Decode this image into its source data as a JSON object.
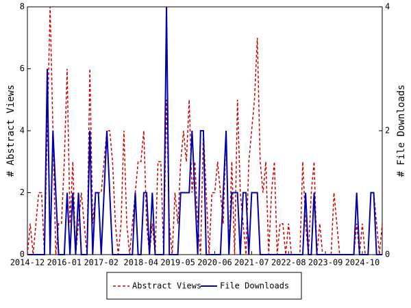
{
  "chart_data": {
    "type": "line",
    "categories": [
      "2014-12",
      null,
      null,
      null,
      null,
      null,
      null,
      null,
      null,
      null,
      null,
      null,
      null,
      "2016-01",
      null,
      null,
      null,
      null,
      null,
      null,
      null,
      null,
      null,
      null,
      null,
      null,
      "2017-02",
      null,
      null,
      null,
      null,
      null,
      null,
      null,
      null,
      null,
      null,
      null,
      null,
      null,
      "2018-04",
      null,
      null,
      null,
      null,
      null,
      null,
      null,
      null,
      null,
      null,
      null,
      null,
      "2019-05",
      null,
      null,
      null,
      null,
      null,
      null,
      null,
      null,
      null,
      null,
      null,
      null,
      "2020-06",
      null,
      null,
      null,
      null,
      null,
      null,
      null,
      null,
      null,
      null,
      null,
      null,
      "2021-07",
      null,
      null,
      null,
      null,
      null,
      null,
      null,
      null,
      null,
      null,
      null,
      null,
      "2022-08",
      null,
      null,
      null,
      null,
      null,
      null,
      null,
      null,
      null,
      null,
      null,
      null,
      "2023-09",
      null,
      null,
      null,
      null,
      null,
      null,
      null,
      null,
      null,
      null,
      null,
      null,
      "2024-10",
      null,
      null,
      null,
      null,
      null,
      null,
      null
    ],
    "ylabel": "# Abstract Views",
    "y2label": "# File Downloads",
    "ylim": [
      0,
      8
    ],
    "yticks": [
      0,
      2,
      4,
      6,
      8
    ],
    "y2lim": [
      0,
      4
    ],
    "y2ticks": [
      0,
      2,
      4
    ],
    "legend": "bottom",
    "series": [
      {
        "name": "Abstract Views",
        "color": "#cc0000",
        "dash": true,
        "values": [
          0,
          1,
          0,
          1,
          2,
          2,
          0,
          4,
          8,
          4,
          0,
          1,
          1,
          3,
          6,
          1,
          3,
          0,
          1,
          2,
          1,
          0,
          6,
          1,
          2,
          2,
          2,
          3,
          4,
          4,
          3,
          1,
          0,
          1,
          4,
          1,
          0,
          1,
          2,
          3,
          3,
          4,
          1,
          0,
          1,
          0,
          3,
          3,
          0,
          5,
          1,
          0,
          2,
          1,
          3,
          4,
          3,
          5,
          2,
          3,
          1,
          0,
          4,
          2,
          0,
          2,
          2,
          3,
          2,
          1,
          4,
          0,
          3,
          0,
          5,
          2,
          1,
          0,
          3,
          4,
          5,
          7,
          3,
          2,
          3,
          0,
          2,
          3,
          0,
          1,
          1,
          0,
          1,
          0,
          0,
          0,
          0,
          3,
          1,
          0,
          2,
          3,
          0,
          1,
          0,
          0,
          0,
          0,
          2,
          1,
          0,
          0,
          0,
          0,
          0,
          0,
          1,
          0,
          1,
          0,
          0,
          2,
          2,
          1,
          0,
          1
        ]
      },
      {
        "name": "File Downloads",
        "color": "#0000aa",
        "dash": false,
        "axis": "y2",
        "values": [
          0,
          0,
          0,
          0,
          0,
          0,
          0,
          3,
          0,
          2,
          1,
          0,
          0,
          0,
          1,
          0,
          1,
          0,
          1,
          0,
          0,
          0,
          2,
          0,
          1,
          1,
          0,
          1,
          2,
          1,
          0,
          0,
          0,
          0,
          0,
          0,
          0,
          0,
          1,
          0,
          0,
          1,
          1,
          0,
          1,
          0,
          0,
          0,
          0,
          4,
          0,
          0,
          0,
          0,
          1,
          1,
          1,
          1,
          2,
          1,
          0,
          2,
          2,
          0,
          0,
          0,
          0,
          0,
          0,
          1,
          2,
          0,
          1,
          1,
          1,
          0,
          1,
          1,
          0,
          1,
          1,
          1,
          0,
          0,
          0,
          0,
          0,
          0,
          0,
          0,
          0,
          0,
          0,
          0,
          0,
          0,
          0,
          0,
          1,
          0,
          0,
          1,
          0,
          0,
          0,
          0,
          0,
          0,
          0,
          0,
          0,
          0,
          0,
          0,
          0,
          0,
          1,
          0,
          0,
          0,
          0,
          1,
          1,
          0,
          0,
          0
        ]
      }
    ]
  }
}
